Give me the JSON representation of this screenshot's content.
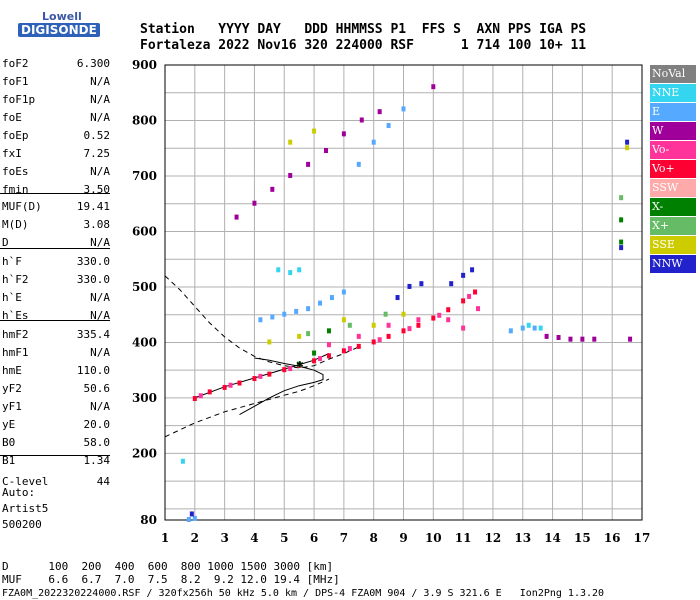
{
  "logo": {
    "top": "Lowell",
    "bottom": "DIGISONDE"
  },
  "header": {
    "line1": "Station   YYYY DAY   DDD HHMMSS P1  FFS S  AXN PPS IGA PS",
    "line2": "Fortaleza 2022 Nov16 320 224000 RSF      1 714 100 10+ 11"
  },
  "params": [
    {
      "k": "foF2",
      "v": "6.300"
    },
    {
      "k": "foF1",
      "v": "N/A"
    },
    {
      "k": "foF1p",
      "v": "N/A"
    },
    {
      "k": "foE",
      "v": "N/A"
    },
    {
      "k": "foEp",
      "v": "0.52"
    },
    {
      "k": "fxI",
      "v": "7.25"
    },
    {
      "k": "foEs",
      "v": "N/A"
    },
    {
      "k": "fmin",
      "v": "3.50"
    },
    {
      "k": "MUF(D)",
      "v": "19.41"
    },
    {
      "k": "M(D)",
      "v": "3.08"
    },
    {
      "k": "D",
      "v": "N/A"
    },
    {
      "k": "h`F",
      "v": "330.0"
    },
    {
      "k": "h`F2",
      "v": "330.0"
    },
    {
      "k": "h`E",
      "v": "N/A"
    },
    {
      "k": "h`Es",
      "v": "N/A"
    },
    {
      "k": "hmF2",
      "v": "335.4"
    },
    {
      "k": "hmF1",
      "v": "N/A"
    },
    {
      "k": "hmE",
      "v": "110.0"
    },
    {
      "k": "yF2",
      "v": "50.6"
    },
    {
      "k": "yF1",
      "v": "N/A"
    },
    {
      "k": "yE",
      "v": "20.0"
    },
    {
      "k": "B0",
      "v": "58.0"
    },
    {
      "k": "B1",
      "v": "1.34"
    },
    {
      "k": "C-level",
      "v": "44"
    }
  ],
  "auto": {
    "label": "Auto:",
    "system": "Artist5",
    "version": "500200"
  },
  "legend": [
    {
      "label": "NoVal",
      "color": "#808080"
    },
    {
      "label": "NNE",
      "color": "#33d6ee"
    },
    {
      "label": "E",
      "color": "#55aaff"
    },
    {
      "label": "W",
      "color": "#a0009a"
    },
    {
      "label": "Vo-",
      "color": "#ff3399"
    },
    {
      "label": "Vo+",
      "color": "#ff0033"
    },
    {
      "label": "SSW",
      "color": "#ffaaaa"
    },
    {
      "label": "X-",
      "color": "#008000"
    },
    {
      "label": "X+",
      "color": "#66bb66"
    },
    {
      "label": "SSE",
      "color": "#cccc00"
    },
    {
      "label": "NNW",
      "color": "#2222cc"
    }
  ],
  "footer": {
    "row1": "D      100  200  400  600  800 1000 1500 3000 [km]",
    "row2": "MUF    6.6  6.7  7.0  7.5  8.2  9.2 12.0 19.4 [MHz]",
    "row3": "FZA0M_2022320224000.RSF / 320fx256h 50 kHz 5.0 km / DPS-4 FZA0M 904 / 3.9 S 321.6 E   Ion2Png 1.3.20"
  },
  "chart_data": {
    "type": "scatter",
    "xlim": [
      1,
      17
    ],
    "ylim": [
      80,
      900
    ],
    "x_ticks": [
      1,
      2,
      3,
      4,
      5,
      6,
      7,
      8,
      9,
      10,
      11,
      12,
      13,
      14,
      15,
      16,
      17
    ],
    "y_ticks": [
      80,
      200,
      300,
      400,
      500,
      600,
      700,
      800,
      900
    ],
    "grid": true,
    "series": [
      {
        "name": "Vo+",
        "color": "#ff0033",
        "points": [
          [
            2.0,
            298
          ],
          [
            2.5,
            310
          ],
          [
            3.0,
            318
          ],
          [
            3.5,
            326
          ],
          [
            4.0,
            334
          ],
          [
            4.5,
            342
          ],
          [
            5.0,
            350
          ],
          [
            5.5,
            358
          ],
          [
            6.0,
            366
          ],
          [
            6.5,
            375
          ],
          [
            7.0,
            384
          ],
          [
            7.5,
            392
          ],
          [
            8.0,
            400
          ],
          [
            8.5,
            410
          ],
          [
            9.0,
            420
          ],
          [
            9.5,
            430
          ],
          [
            10.0,
            443
          ],
          [
            10.5,
            458
          ],
          [
            11.0,
            474
          ],
          [
            11.4,
            490
          ]
        ]
      },
      {
        "name": "Vo-",
        "color": "#ff3399",
        "points": [
          [
            2.2,
            303
          ],
          [
            3.2,
            322
          ],
          [
            4.2,
            338
          ],
          [
            5.2,
            352
          ],
          [
            6.2,
            370
          ],
          [
            7.2,
            388
          ],
          [
            8.2,
            404
          ],
          [
            9.2,
            424
          ],
          [
            10.2,
            448
          ],
          [
            11.2,
            482
          ],
          [
            6.5,
            395
          ],
          [
            7.5,
            410
          ],
          [
            8.5,
            430
          ],
          [
            9.5,
            440
          ],
          [
            10.5,
            440
          ],
          [
            11.0,
            425
          ],
          [
            11.5,
            460
          ]
        ]
      },
      {
        "name": "E",
        "color": "#55aaff",
        "points": [
          [
            4.2,
            440
          ],
          [
            4.6,
            445
          ],
          [
            5.0,
            450
          ],
          [
            5.4,
            455
          ],
          [
            5.8,
            460
          ],
          [
            6.2,
            470
          ],
          [
            6.6,
            480
          ],
          [
            7.0,
            490
          ],
          [
            7.5,
            720
          ],
          [
            8.0,
            760
          ],
          [
            8.5,
            790
          ],
          [
            9.0,
            820
          ],
          [
            12.6,
            420
          ],
          [
            13.0,
            425
          ],
          [
            13.4,
            425
          ],
          [
            1.8,
            80
          ],
          [
            2.0,
            82
          ]
        ]
      },
      {
        "name": "NNE",
        "color": "#33d6ee",
        "points": [
          [
            4.8,
            530
          ],
          [
            5.2,
            525
          ],
          [
            5.5,
            530
          ],
          [
            13.2,
            430
          ],
          [
            13.6,
            425
          ],
          [
            1.6,
            185
          ]
        ]
      },
      {
        "name": "W",
        "color": "#a0009a",
        "points": [
          [
            3.4,
            625
          ],
          [
            4.0,
            650
          ],
          [
            4.6,
            675
          ],
          [
            5.2,
            700
          ],
          [
            5.8,
            720
          ],
          [
            6.4,
            745
          ],
          [
            7.0,
            775
          ],
          [
            7.6,
            800
          ],
          [
            8.2,
            815
          ],
          [
            13.8,
            410
          ],
          [
            14.2,
            408
          ],
          [
            14.6,
            405
          ],
          [
            15.0,
            405
          ],
          [
            15.4,
            405
          ],
          [
            16.6,
            405
          ],
          [
            10.0,
            860
          ]
        ]
      },
      {
        "name": "NNW",
        "color": "#2222cc",
        "points": [
          [
            8.8,
            480
          ],
          [
            9.2,
            500
          ],
          [
            9.6,
            505
          ],
          [
            10.6,
            505
          ],
          [
            11.0,
            520
          ],
          [
            11.3,
            530
          ],
          [
            16.5,
            760
          ],
          [
            16.3,
            570
          ],
          [
            1.9,
            90
          ]
        ]
      },
      {
        "name": "X-",
        "color": "#008000",
        "points": [
          [
            5.5,
            360
          ],
          [
            6.0,
            380
          ],
          [
            6.5,
            420
          ],
          [
            16.3,
            620
          ],
          [
            16.3,
            580
          ]
        ]
      },
      {
        "name": "X+",
        "color": "#66bb66",
        "points": [
          [
            5.8,
            415
          ],
          [
            7.2,
            430
          ],
          [
            8.4,
            450
          ],
          [
            16.3,
            660
          ]
        ]
      },
      {
        "name": "SSE",
        "color": "#cccc00",
        "points": [
          [
            4.5,
            400
          ],
          [
            5.5,
            410
          ],
          [
            7.0,
            440
          ],
          [
            8.0,
            430
          ],
          [
            9.0,
            450
          ],
          [
            5.2,
            760
          ],
          [
            6.0,
            780
          ],
          [
            16.5,
            750
          ]
        ]
      }
    ],
    "curves": [
      {
        "name": "profile-dashed",
        "style": "dashed",
        "points": [
          [
            1.0,
            520
          ],
          [
            1.5,
            495
          ],
          [
            2.0,
            465
          ],
          [
            2.5,
            435
          ],
          [
            3.0,
            410
          ],
          [
            3.5,
            390
          ],
          [
            4.0,
            375
          ],
          [
            4.5,
            365
          ],
          [
            5.0,
            358
          ],
          [
            5.5,
            354
          ],
          [
            6.0,
            358
          ],
          [
            6.5,
            370
          ],
          [
            7.0,
            380
          ],
          [
            7.5,
            392
          ]
        ]
      },
      {
        "name": "profile-dashed-lower",
        "style": "dashed",
        "points": [
          [
            1.0,
            230
          ],
          [
            2.0,
            255
          ],
          [
            3.0,
            275
          ],
          [
            4.0,
            290
          ],
          [
            5.0,
            305
          ],
          [
            5.5,
            312
          ],
          [
            6.0,
            322
          ],
          [
            6.5,
            334
          ]
        ]
      },
      {
        "name": "profile-solid",
        "style": "solid",
        "points": [
          [
            3.5,
            270
          ],
          [
            4.0,
            285
          ],
          [
            4.5,
            300
          ],
          [
            5.0,
            313
          ],
          [
            5.5,
            322
          ],
          [
            6.0,
            328
          ],
          [
            6.3,
            333
          ],
          [
            6.3,
            342
          ],
          [
            6.0,
            350
          ],
          [
            5.5,
            357
          ],
          [
            5.0,
            362
          ],
          [
            4.5,
            368
          ],
          [
            4.0,
            372
          ]
        ]
      },
      {
        "name": "trace-fit",
        "style": "solid",
        "points": [
          [
            2.0,
            300
          ],
          [
            3.0,
            320
          ],
          [
            4.0,
            336
          ],
          [
            5.0,
            352
          ],
          [
            5.5,
            360
          ],
          [
            6.0,
            368
          ],
          [
            6.5,
            380
          ]
        ]
      }
    ]
  }
}
